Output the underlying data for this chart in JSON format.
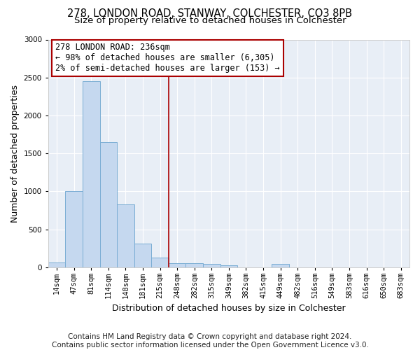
{
  "title": "278, LONDON ROAD, STANWAY, COLCHESTER, CO3 8PB",
  "subtitle": "Size of property relative to detached houses in Colchester",
  "xlabel": "Distribution of detached houses by size in Colchester",
  "ylabel": "Number of detached properties",
  "footer_line1": "Contains HM Land Registry data © Crown copyright and database right 2024.",
  "footer_line2": "Contains public sector information licensed under the Open Government Licence v3.0.",
  "categories": [
    "14sqm",
    "47sqm",
    "81sqm",
    "114sqm",
    "148sqm",
    "181sqm",
    "215sqm",
    "248sqm",
    "282sqm",
    "315sqm",
    "349sqm",
    "382sqm",
    "415sqm",
    "449sqm",
    "482sqm",
    "516sqm",
    "549sqm",
    "583sqm",
    "616sqm",
    "650sqm",
    "683sqm"
  ],
  "values": [
    60,
    1000,
    2450,
    1650,
    830,
    310,
    130,
    55,
    50,
    40,
    25,
    0,
    0,
    40,
    0,
    0,
    0,
    0,
    0,
    0,
    0
  ],
  "bar_color": "#c5d8ef",
  "bar_edge_color": "#7aadd4",
  "highlight_line_index": 7,
  "highlight_line_color": "#aa0000",
  "ylim": [
    0,
    3000
  ],
  "yticks": [
    0,
    500,
    1000,
    1500,
    2000,
    2500,
    3000
  ],
  "annotation_text_line1": "278 LONDON ROAD: 236sqm",
  "annotation_text_line2": "← 98% of detached houses are smaller (6,305)",
  "annotation_text_line3": "2% of semi-detached houses are larger (153) →",
  "annotation_box_facecolor": "#ffffff",
  "annotation_border_color": "#aa0000",
  "fig_bg_color": "#ffffff",
  "plot_bg_color": "#e8eef6",
  "grid_color": "#ffffff",
  "title_fontsize": 10.5,
  "subtitle_fontsize": 9.5,
  "axis_label_fontsize": 9,
  "tick_fontsize": 7.5,
  "footer_fontsize": 7.5,
  "annot_fontsize": 8.5
}
